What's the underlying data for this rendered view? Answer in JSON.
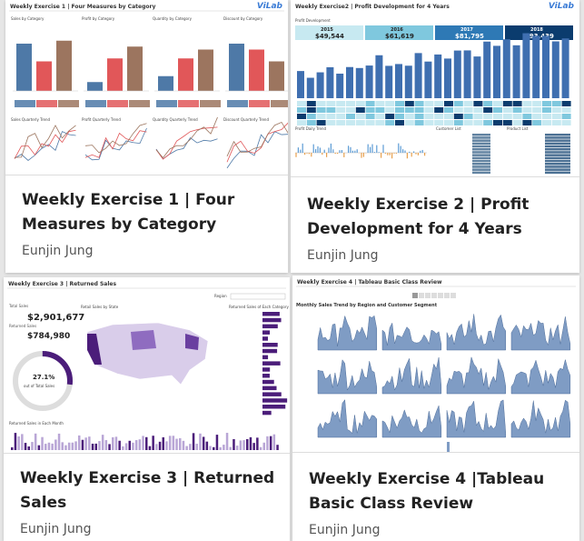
{
  "cards": [
    {
      "title": "Weekly Exercise 1 | Four Measures by Category",
      "author": "Eunjin Jung",
      "thumb": {
        "title": "Weekly Exercise 1 | Four Measures by Category",
        "logo": "ViLab",
        "panel_titles": [
          "Sales by Category",
          "Profit by Category",
          "Quantity by Category",
          "Discount by Category"
        ],
        "trend_titles": [
          "Sales Quarterly Trend",
          "Profit Quarterly Trend",
          "Quantity Quarterly Trend",
          "Discount Quarterly Trend"
        ],
        "colors": [
          "#4e79a7",
          "#e15759",
          "#9c755f"
        ]
      }
    },
    {
      "title": "Weekly Exercise 2 | Profit Development for 4 Years",
      "author": "Eunjin Jung",
      "thumb": {
        "title": "Weekly Exercise2 | Profit Development for 4 Years",
        "logo": "ViLab",
        "panel_title": "Profit Development",
        "years": [
          "2015",
          "2016",
          "2017",
          "2018"
        ],
        "values": [
          "$49,544",
          "$61,619",
          "$81,795",
          "$93,439"
        ],
        "lower_titles": [
          "Profit Daily Trend",
          "Customer List",
          "Product List"
        ],
        "colors": [
          "#c7e9f1",
          "#7fc8de",
          "#2e79b5",
          "#0b3c6e"
        ]
      }
    },
    {
      "title": "Weekly Exercise 3 | Returned Sales",
      "author": "Eunjin Jung",
      "thumb": {
        "title": "Weekly Exercise 3 | Returned Sales",
        "region_label": "Region",
        "total_sales_label": "Total Sales",
        "total_sales": "$2,901,677",
        "returned_label": "Returned Sales",
        "returned": "$784,980",
        "pct": "27.1%",
        "pct_caption": "out of Total Sales",
        "map_title": "Retail Sales by State",
        "list_title": "Returned Sales of Each Category",
        "month_title": "Returned Sales in Each Month",
        "colors": [
          "#4b1d7a",
          "#b9a6d6"
        ]
      }
    },
    {
      "title": "Weekly Exercise 4 |Tableau Basic Class Review",
      "author": "Eunjin Jung",
      "thumb": {
        "title": "Weekly Exercise 4 | Tableau Basic Class Review",
        "subtitle": "Monthly Sales Trend by Region and Customer Segment",
        "colors": [
          "#7f9cc4",
          "#4e6d9a"
        ]
      }
    }
  ]
}
